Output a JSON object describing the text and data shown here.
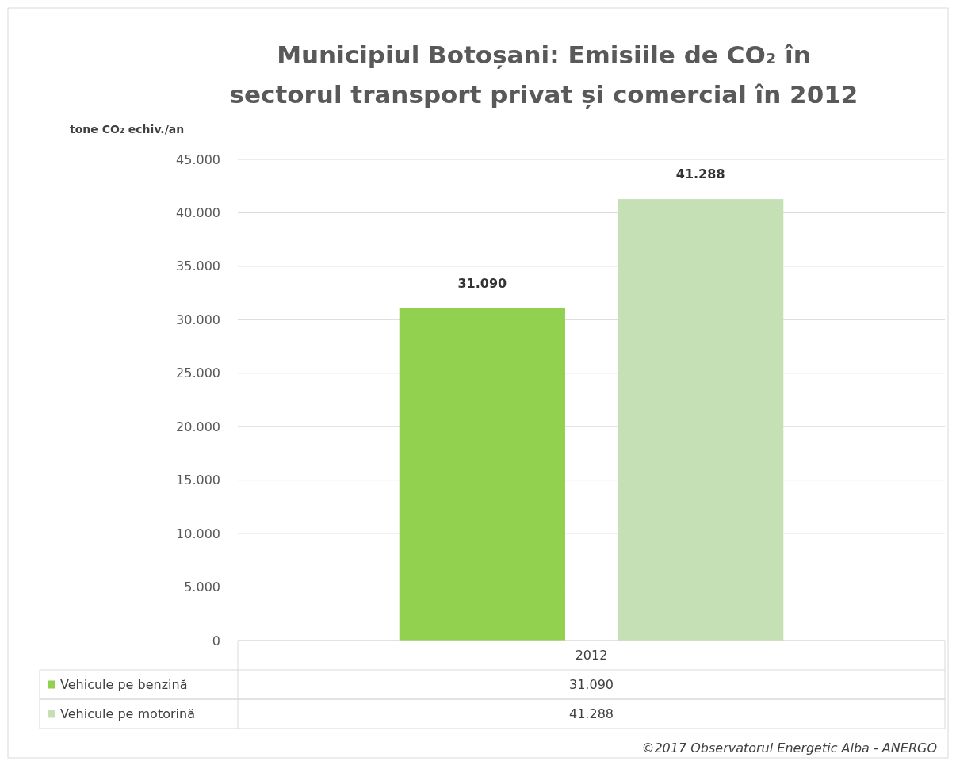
{
  "chart_data": {
    "type": "bar",
    "title": "Municipiul Botoșani: Emisiile de CO₂ în sectorul transport privat și comercial în 2012",
    "ylabel": "tone CO₂ echiv./an",
    "categories": [
      "2012"
    ],
    "series": [
      {
        "name": "Vehicule pe benzină",
        "color": "#92d050",
        "values": [
          31090
        ],
        "value_labels": [
          "31.090"
        ]
      },
      {
        "name": "Vehicule pe motorină",
        "color": "#c5e0b4",
        "values": [
          41288
        ],
        "value_labels": [
          "41.288"
        ]
      }
    ],
    "ylim": [
      0,
      45000
    ],
    "yticks": [
      {
        "value": 0,
        "label": "0"
      },
      {
        "value": 5000,
        "label": "5.000"
      },
      {
        "value": 10000,
        "label": "10.000"
      },
      {
        "value": 15000,
        "label": "15.000"
      },
      {
        "value": 20000,
        "label": "20.000"
      },
      {
        "value": 25000,
        "label": "25.000"
      },
      {
        "value": 30000,
        "label": "30.000"
      },
      {
        "value": 35000,
        "label": "35.000"
      },
      {
        "value": 40000,
        "label": "40.000"
      },
      {
        "value": 45000,
        "label": "45.000"
      }
    ],
    "grid": "y",
    "legend": "bottom",
    "annotations": [
      "©2017 Observatorul Energetic Alba - ANERGO"
    ]
  }
}
